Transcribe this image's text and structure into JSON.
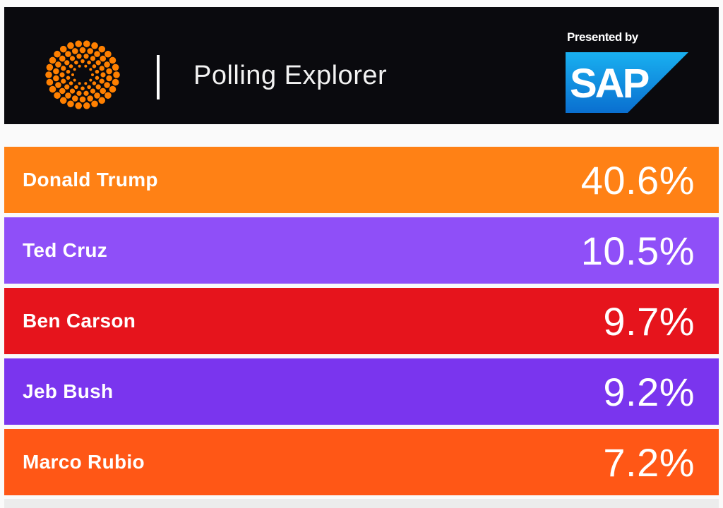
{
  "header": {
    "title": "Polling Explorer",
    "sponsor_label": "Presented by",
    "sponsor_logo_text": "SAP",
    "logo_icon": "reuters-dots-logo",
    "logo_color": "#ff8000",
    "background": "#0a0a0e"
  },
  "candidates": [
    {
      "name": "Donald Trump",
      "percent": "40.6%",
      "color": "#ff8115"
    },
    {
      "name": "Ted Cruz",
      "percent": "10.5%",
      "color": "#8f4ff8"
    },
    {
      "name": "Ben Carson",
      "percent": "9.7%",
      "color": "#e6141c"
    },
    {
      "name": "Jeb Bush",
      "percent": "9.2%",
      "color": "#7a35ee"
    },
    {
      "name": "Marco Rubio",
      "percent": "7.2%",
      "color": "#ff5716"
    }
  ]
}
